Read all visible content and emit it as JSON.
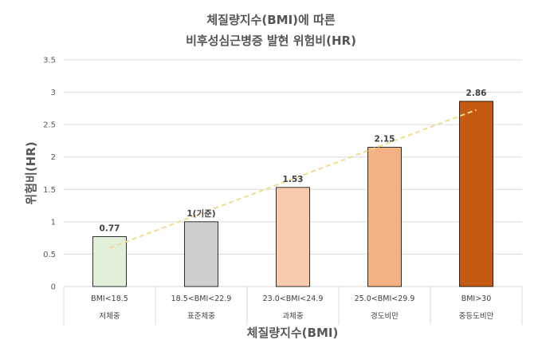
{
  "chart_data": {
    "type": "bar",
    "title_line1": "체질량지수(BMI)에 따른",
    "title_line2": "비후성심근병증 발현 위험비(HR)",
    "xlabel": "체질량지수(BMI)",
    "ylabel": "위험비(HR)",
    "ylim": [
      0,
      3.5
    ],
    "yticks": [
      "0",
      "0.5",
      "1",
      "1.5",
      "2",
      "2.5",
      "3",
      "3.5"
    ],
    "grid": true,
    "legend": "none",
    "trendline": "linear",
    "categories": [
      {
        "range": "BMI<18.5",
        "name": "저체중"
      },
      {
        "range": "18.5<BMI<22.9",
        "name": "표준체중"
      },
      {
        "range": "23.0<BMI<24.9",
        "name": "과체중"
      },
      {
        "range": "25.0<BMI<29.9",
        "name": "경도비만"
      },
      {
        "range": "BMI>30",
        "name": "중등도비만"
      }
    ],
    "values": [
      0.77,
      1,
      1.53,
      2.15,
      2.86
    ],
    "data_labels": [
      "0.77",
      "1(기준)",
      "1.53",
      "2.15",
      "2.86"
    ],
    "colors": {
      "bars": [
        "#e2f0d9",
        "#d0cece",
        "#f8cbad",
        "#f4b183",
        "#c55a11"
      ],
      "trendline": "#f2dc8f",
      "grid": "#d9d9d9"
    }
  }
}
